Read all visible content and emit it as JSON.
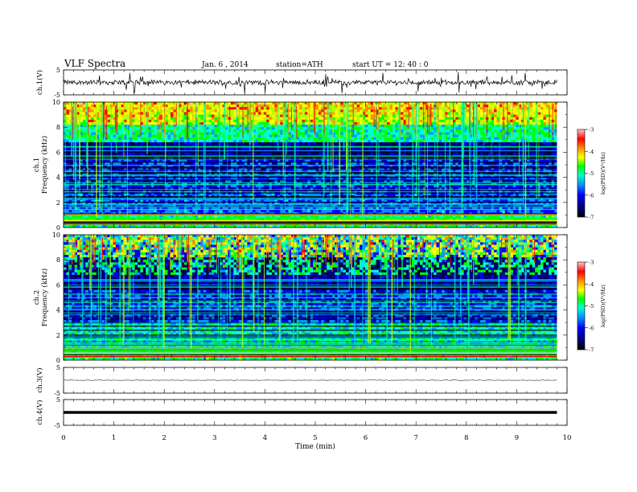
{
  "header": {
    "title": "VLF  Spectra",
    "date": "Jan.  6  , 2014",
    "station": "station=ATH",
    "start_time": "start  UT  =    12: 40 : 0"
  },
  "chart_data": [
    {
      "type": "line",
      "ylabel": "ch.1(V)",
      "ylim": [
        -5,
        5
      ],
      "yticks": [
        "5",
        "-5"
      ],
      "baseline": 0,
      "trace": "noisy"
    },
    {
      "type": "heatmap",
      "ylabel": "ch.1\nFrequency  (kHz)",
      "ylim": [
        0,
        10
      ],
      "yticks": [
        "0",
        "2",
        "4",
        "6",
        "8",
        "10"
      ],
      "colorbar": {
        "label": "log(PSD)(V²/Hz)",
        "range": [
          -7,
          -3
        ],
        "ticks": [
          "-3",
          "-4",
          "-5",
          "-6",
          "-7"
        ]
      }
    },
    {
      "type": "heatmap",
      "ylabel": "ch.2\nFrequency  (kHz)",
      "ylim": [
        0,
        10
      ],
      "yticks": [
        "0",
        "2",
        "4",
        "6",
        "8",
        "10"
      ],
      "colorbar": {
        "label": "log(PSD)(V²/Hz)",
        "range": [
          -7,
          -3
        ],
        "ticks": [
          "-3",
          "-4",
          "-5",
          "-6",
          "-7"
        ]
      }
    },
    {
      "type": "line",
      "ylabel": "ch.3(V)",
      "ylim": [
        -5,
        5
      ],
      "yticks": [
        "5",
        "-5"
      ],
      "baseline": 0,
      "trace": "thin"
    },
    {
      "type": "line",
      "ylabel": "ch.4(V)",
      "ylim": [
        -5,
        5
      ],
      "yticks": [
        "5",
        "-5"
      ],
      "baseline": 0,
      "trace": "thick"
    }
  ],
  "x_axis": {
    "label": "Time  (min)",
    "xlim": [
      0,
      10
    ],
    "ticks": [
      "0",
      "1",
      "2",
      "3",
      "4",
      "5",
      "6",
      "7",
      "8",
      "9",
      "10"
    ],
    "data_end": 9.8
  },
  "colormap": [
    "#000000",
    "#00003a",
    "#000080",
    "#0000ff",
    "#0096ff",
    "#00ffc8",
    "#00ff00",
    "#b4ff00",
    "#ffff00",
    "#ff8c00",
    "#ff0000",
    "#ffc8c8"
  ]
}
